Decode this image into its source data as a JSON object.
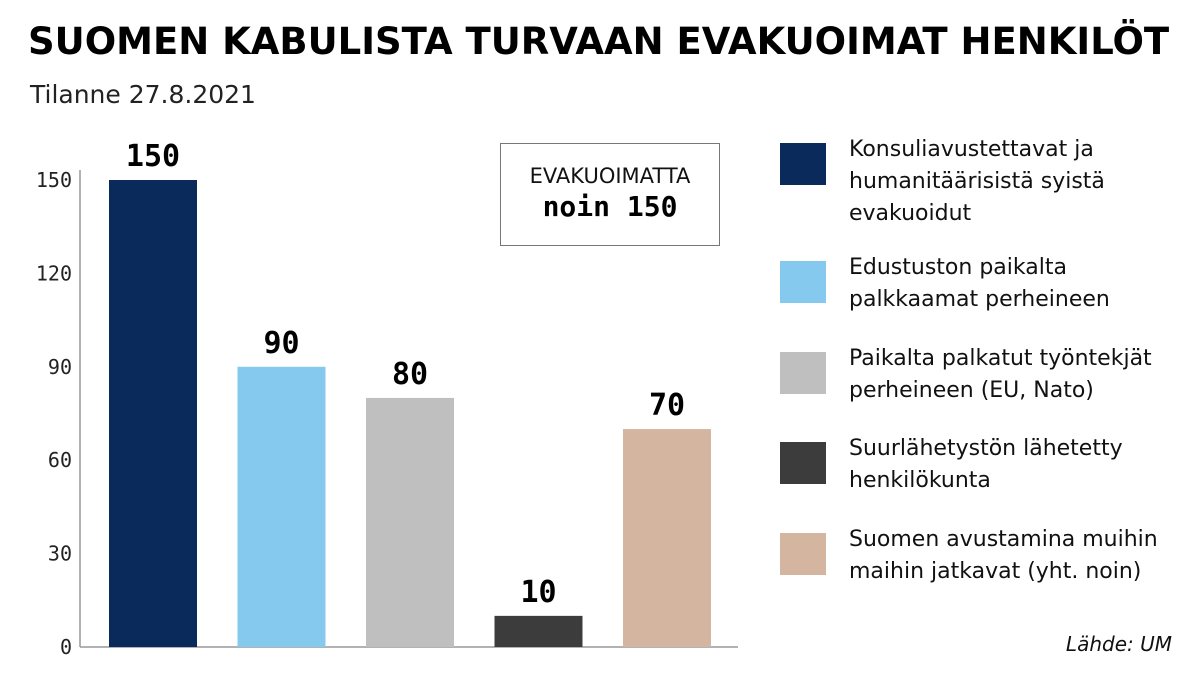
{
  "title": "SUOMEN KABULISTA TURVAAN EVAKUOIMAT HENKILÖT",
  "subtitle": "Tilanne 27.8.2021",
  "callout": {
    "title": "EVAKUOIMATTA",
    "value": "noin 150"
  },
  "source": "Lähde: UM",
  "chart_data": {
    "type": "bar",
    "categories": [
      "Konsuliavustettavat ja humanitäärisistä syistä evakuoidut",
      "Edustuston paikalta palkkaamat perheineen",
      "Paikalta palkatut työntekjät perheineen (EU, Nato)",
      "Suurlähetystön lähetetty henkilökunta",
      "Suomen avustamina muihin maihin jatkavat (yht. noin)"
    ],
    "values": [
      150,
      90,
      80,
      10,
      70
    ],
    "value_labels": [
      "150",
      "90",
      "80",
      "10",
      "70"
    ],
    "colors": [
      "#0a2a5c",
      "#86c9ef",
      "#bfbfbf",
      "#3c3c3c",
      "#d4b6a0"
    ],
    "yticks": [
      0,
      30,
      60,
      90,
      120,
      150
    ],
    "ylim": [
      0,
      150
    ],
    "legend_position": "right",
    "grid": false
  },
  "legend": [
    {
      "label": "Konsuliavustettavat ja humanitäärisistä syistä evakuoidut",
      "color": "#0a2a5c"
    },
    {
      "label": "Edustuston paikalta palkkaamat perheineen",
      "color": "#86c9ef"
    },
    {
      "label": "Paikalta palkatut työntekjät perheineen (EU, Nato)",
      "color": "#bfbfbf"
    },
    {
      "label": "Suurlähetystön lähetetty henkilökunta",
      "color": "#3c3c3c"
    },
    {
      "label": "Suomen avustamina muihin maihin jatkavat (yht. noin)",
      "color": "#d4b6a0"
    }
  ]
}
